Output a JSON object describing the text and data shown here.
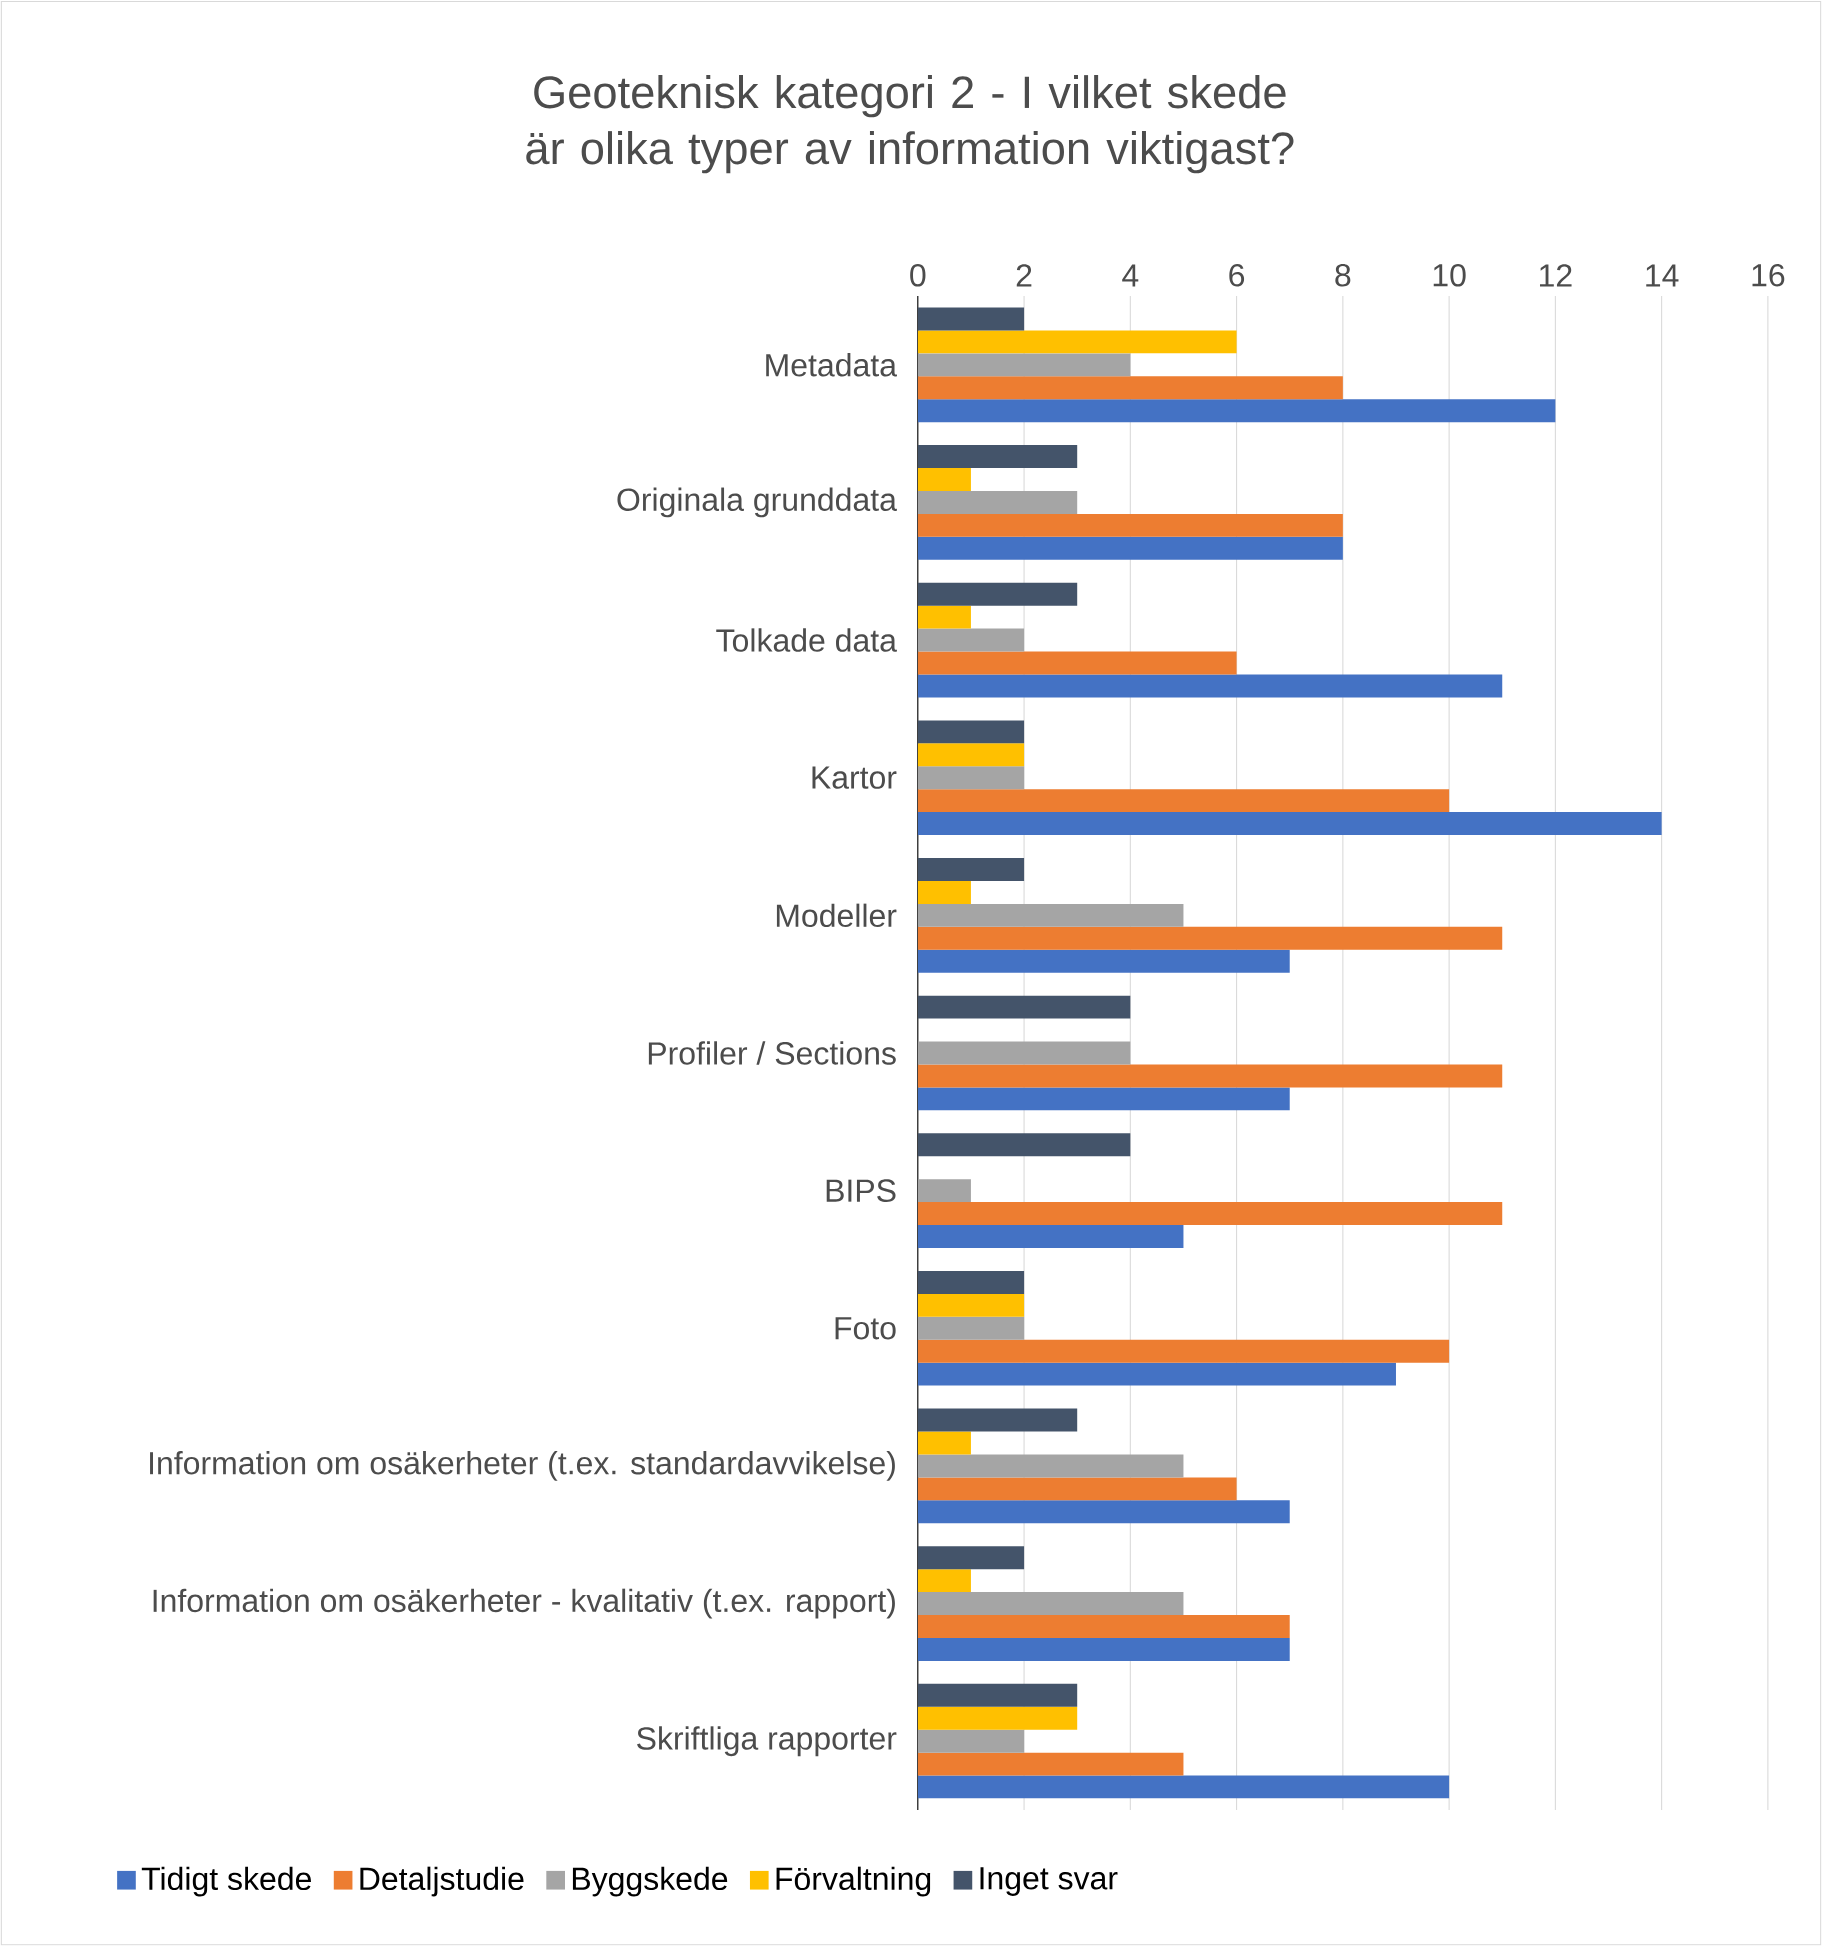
{
  "chart_data": {
    "type": "bar",
    "orientation": "horizontal",
    "title": "Geoteknisk kategori 2 - I vilket skede är olika typer av information viktigast?",
    "categories": [
      "Metadata",
      "Originala grunddata",
      "Tolkade data",
      "Kartor",
      "Modeller",
      "Profiler / Sections",
      "BIPS",
      "Foto",
      "Information om osäkerheter (t.ex. standardavvikelse)",
      "Information om osäkerheter - kvalitativ (t.ex. rapport)",
      "Skriftliga rapporter"
    ],
    "series": [
      {
        "name": "Tidigt skede",
        "color": "#4472c4",
        "values": [
          12,
          8,
          11,
          14,
          7,
          7,
          5,
          9,
          7,
          7,
          10
        ]
      },
      {
        "name": "Detaljstudie",
        "color": "#ed7d31",
        "values": [
          8,
          8,
          6,
          10,
          11,
          11,
          11,
          10,
          6,
          7,
          5
        ]
      },
      {
        "name": "Byggskede",
        "color": "#a5a5a5",
        "values": [
          4,
          3,
          2,
          2,
          5,
          4,
          1,
          2,
          5,
          5,
          2
        ]
      },
      {
        "name": "Förvaltning",
        "color": "#ffc000",
        "values": [
          6,
          1,
          1,
          2,
          1,
          0,
          0,
          2,
          1,
          1,
          3
        ]
      },
      {
        "name": "Inget svar",
        "color": "#44546a",
        "values": [
          2,
          3,
          3,
          2,
          2,
          4,
          4,
          2,
          3,
          2,
          3
        ]
      }
    ],
    "xlim": [
      0,
      16
    ],
    "xticks": [
      0,
      2,
      4,
      6,
      8,
      10,
      12,
      14,
      16
    ],
    "grid": "x",
    "legend": "bottom"
  }
}
